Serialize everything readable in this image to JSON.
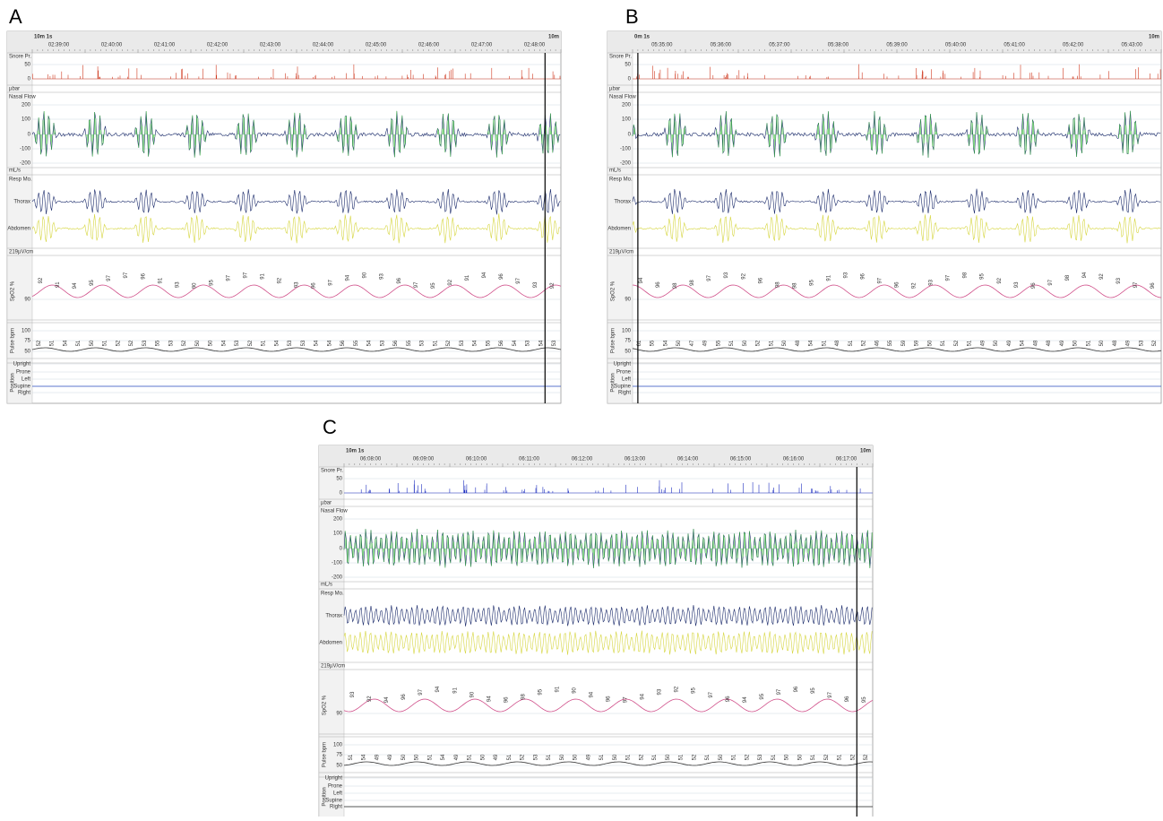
{
  "panels": [
    {
      "label": "A",
      "duration": "10m 1s",
      "end": "10m",
      "snore_color": "#d03a20",
      "cursor": 0.97,
      "phase": 0,
      "times": [
        "02:39:00",
        "02:40:00",
        "02:41:00",
        "02:42:00",
        "02:43:00",
        "02:44:00",
        "02:45:00",
        "02:46:00",
        "02:47:00",
        "02:48:00"
      ],
      "spo2": [
        "92",
        "91",
        "94",
        "95",
        "97",
        "97",
        "96",
        "91",
        "93",
        "90",
        "95",
        "97",
        "97",
        "91",
        "92",
        "93",
        "96",
        "97",
        "94",
        "90",
        "93",
        "96",
        "97",
        "95",
        "92",
        "91",
        "94",
        "96",
        "97",
        "93",
        "92"
      ],
      "pulse": [
        "52",
        "51",
        "54",
        "51",
        "50",
        "51",
        "52",
        "52",
        "53",
        "55",
        "53",
        "52",
        "50",
        "50",
        "54",
        "53",
        "52",
        "51",
        "54",
        "53",
        "53",
        "54",
        "54",
        "56",
        "55",
        "54",
        "53",
        "56",
        "55",
        "53",
        "51",
        "52",
        "53",
        "54",
        "55",
        "56",
        "54",
        "53",
        "54",
        "53"
      ]
    },
    {
      "label": "B",
      "duration": "0m 1s",
      "end": "10m",
      "snore_color": "#d03a20",
      "cursor": 0.01,
      "phase": 0.4,
      "times": [
        "05:35:00",
        "05:36:00",
        "05:37:00",
        "05:38:00",
        "05:39:00",
        "05:40:00",
        "05:41:00",
        "05:42:00",
        "05:43:00"
      ],
      "spo2": [
        "94",
        "96",
        "98",
        "98",
        "97",
        "93",
        "92",
        "96",
        "98",
        "98",
        "95",
        "91",
        "93",
        "96",
        "97",
        "96",
        "92",
        "93",
        "97",
        "98",
        "95",
        "92",
        "93",
        "96",
        "97",
        "98",
        "94",
        "92",
        "93",
        "97",
        "96"
      ],
      "pulse": [
        "61",
        "55",
        "54",
        "50",
        "47",
        "49",
        "55",
        "51",
        "50",
        "52",
        "51",
        "50",
        "48",
        "54",
        "51",
        "48",
        "51",
        "52",
        "46",
        "55",
        "59",
        "59",
        "50",
        "51",
        "52",
        "51",
        "49",
        "50",
        "49",
        "54",
        "48",
        "48",
        "49",
        "50",
        "51",
        "50",
        "48",
        "49",
        "53",
        "52"
      ]
    },
    {
      "label": "C",
      "duration": "10m 1s",
      "end": "10m",
      "snore_color": "#2030c0",
      "cursor": 0.97,
      "phase": 0.8,
      "times": [
        "06:08:00",
        "06:09:00",
        "06:10:00",
        "06:11:00",
        "06:12:00",
        "06:13:00",
        "06:14:00",
        "06:15:00",
        "06:16:00",
        "06:17:00"
      ],
      "spo2": [
        "93",
        "92",
        "94",
        "96",
        "97",
        "94",
        "91",
        "90",
        "94",
        "96",
        "98",
        "95",
        "91",
        "90",
        "94",
        "96",
        "97",
        "94",
        "93",
        "92",
        "95",
        "97",
        "96",
        "94",
        "95",
        "97",
        "96",
        "95",
        "97",
        "96",
        "95"
      ],
      "pulse": [
        "51",
        "54",
        "49",
        "49",
        "50",
        "50",
        "51",
        "54",
        "49",
        "51",
        "50",
        "49",
        "51",
        "52",
        "53",
        "51",
        "50",
        "50",
        "49",
        "51",
        "50",
        "51",
        "52",
        "51",
        "50",
        "51",
        "52",
        "51",
        "50",
        "51",
        "52",
        "53",
        "51",
        "50",
        "50",
        "51",
        "52",
        "51",
        "52",
        "52"
      ]
    }
  ],
  "channels": {
    "snore": "Snore Pr.",
    "snore_unit": "µbar",
    "flow": "Nasal Flow",
    "flow_unit": "mL/s",
    "resp": "Resp Mo.",
    "thorax": "Thorax",
    "abdomen": "Abdomen",
    "resp_unit": "219µV/cm",
    "spo2": "SpO2 %",
    "pulse": "Pulse bpm",
    "position": "Position",
    "positions": [
      "Upright",
      "Prone",
      "Left",
      "Supine",
      "Right"
    ]
  },
  "ticks": {
    "snore": [
      "50",
      "0"
    ],
    "flow": [
      "200",
      "100",
      "0",
      "-100",
      "-200"
    ],
    "spo2": [
      "90"
    ],
    "pulse": [
      "100",
      "75",
      "50"
    ]
  }
}
